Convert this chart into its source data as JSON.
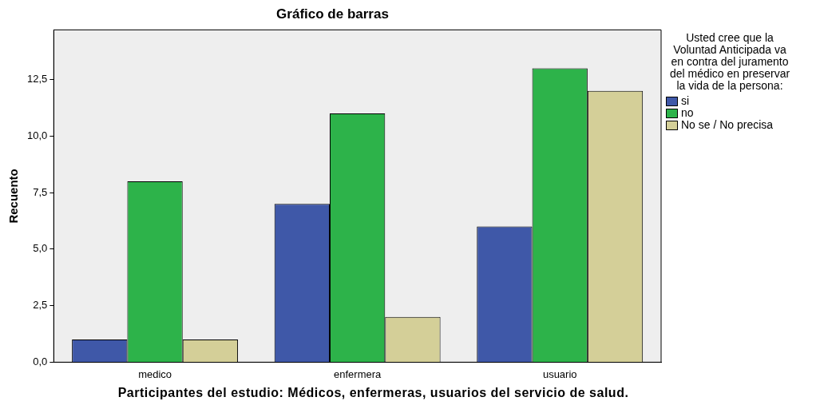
{
  "chart_data": {
    "type": "bar",
    "title": "Gráfico de barras",
    "xlabel": "Participantes del estudio: Médicos, enfermeras, usuarios del servicio de salud.",
    "ylabel": "Recuento",
    "legend_title": "Usted cree que la Voluntad Anticipada va en contra del juramento del médico en preservar la vida de la persona:",
    "categories": [
      "medico",
      "enfermera",
      "usuario"
    ],
    "series": [
      {
        "name": "si",
        "color": "#3f58a8",
        "values": [
          1,
          7,
          6
        ]
      },
      {
        "name": "no",
        "color": "#2db34a",
        "values": [
          8,
          11,
          13
        ]
      },
      {
        "name": "No se / No precisa",
        "color": "#d4cf98",
        "values": [
          1,
          2,
          12
        ]
      }
    ],
    "ylim": [
      0,
      14.7
    ],
    "yticks": [
      {
        "value": 0,
        "label": "0,0"
      },
      {
        "value": 2.5,
        "label": "2,5"
      },
      {
        "value": 5,
        "label": "5,0"
      },
      {
        "value": 7.5,
        "label": "7,5"
      },
      {
        "value": 10,
        "label": "10,0"
      },
      {
        "value": 12.5,
        "label": "12,5"
      }
    ],
    "grid": false,
    "legend": "right"
  }
}
